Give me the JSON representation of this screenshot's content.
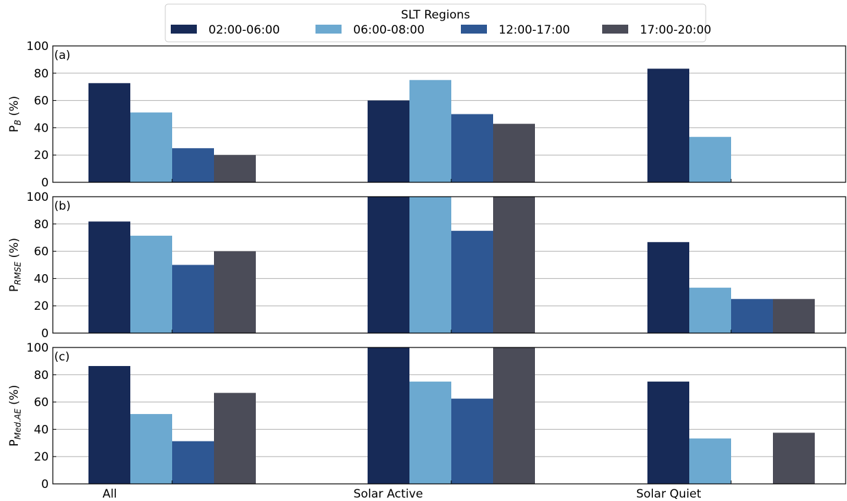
{
  "chart_data": {
    "type": "bar",
    "categories": [
      "All",
      "Solar Active",
      "Solar Quiet"
    ],
    "legend": {
      "title": "SLT Regions",
      "placement": "top-center"
    },
    "series_names": [
      "02:00-06:00",
      "06:00-08:00",
      "12:00-17:00",
      "17:00-20:00"
    ],
    "colors": [
      "#172a57",
      "#6ca9d0",
      "#2e5793",
      "#4b4c58"
    ],
    "grid": "horizontal",
    "panels": [
      {
        "label": "(a)",
        "ylabel_main": "P",
        "ylabel_sub": "B",
        "ylabel_unit": " (%)",
        "ylim": [
          0,
          100
        ],
        "yticks": [
          0,
          20,
          40,
          60,
          80,
          100
        ],
        "series": [
          {
            "name": "02:00-06:00",
            "values": [
              72.7,
              60,
              83.3
            ]
          },
          {
            "name": "06:00-08:00",
            "values": [
              51.2,
              75,
              33.3
            ]
          },
          {
            "name": "12:00-17:00",
            "values": [
              25,
              50,
              0
            ]
          },
          {
            "name": "17:00-20:00",
            "values": [
              20,
              42.9,
              0
            ]
          }
        ]
      },
      {
        "label": "(b)",
        "ylabel_main": "P",
        "ylabel_sub": "RMSE",
        "ylabel_unit": " (%)",
        "ylim": [
          0,
          100
        ],
        "yticks": [
          0,
          20,
          40,
          60,
          80,
          100
        ],
        "series": [
          {
            "name": "02:00-06:00",
            "values": [
              81.8,
              100,
              66.7
            ]
          },
          {
            "name": "06:00-08:00",
            "values": [
              71.4,
              100,
              33.3
            ]
          },
          {
            "name": "12:00-17:00",
            "values": [
              50,
              75,
              25
            ]
          },
          {
            "name": "17:00-20:00",
            "values": [
              60,
              100,
              25
            ]
          }
        ]
      },
      {
        "label": "(c)",
        "ylabel_main": "P",
        "ylabel_sub": "Med.AE",
        "ylabel_unit": " (%)",
        "ylim": [
          0,
          100
        ],
        "yticks": [
          0,
          20,
          40,
          60,
          80,
          100
        ],
        "series": [
          {
            "name": "02:00-06:00",
            "values": [
              86.4,
              100,
              75
            ]
          },
          {
            "name": "06:00-08:00",
            "values": [
              51.2,
              75,
              33.3
            ]
          },
          {
            "name": "12:00-17:00",
            "values": [
              31.3,
              62.5,
              0
            ]
          },
          {
            "name": "17:00-20:00",
            "values": [
              66.7,
              100,
              37.5
            ]
          }
        ]
      }
    ]
  }
}
